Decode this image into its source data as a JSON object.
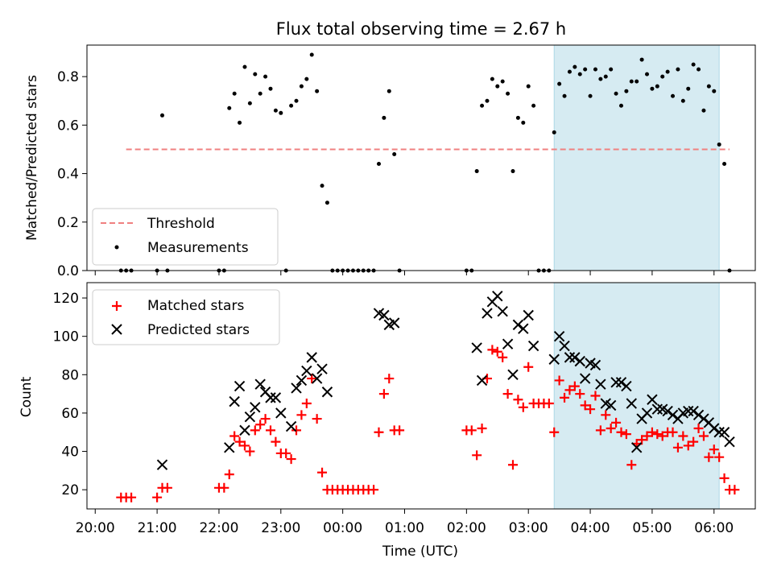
{
  "chart_data": [
    {
      "type": "scatter",
      "title": "Flux total observing time = 2.67 h",
      "ylabel": "Matched/Predicted stars",
      "ylim": [
        0,
        0.93
      ],
      "yticks": [
        0.0,
        0.2,
        0.4,
        0.6,
        0.8
      ],
      "ytick_labels": [
        "0.0",
        "0.2",
        "0.4",
        "0.6",
        "0.8"
      ],
      "legend_position": "lower-left",
      "highlight_span": [
        "03:25",
        "06:05"
      ],
      "highlight_color": "#add8e6",
      "threshold": {
        "name": "Threshold",
        "y": 0.5,
        "x_range": [
          "20:30",
          "06:15"
        ],
        "color": "#f08080"
      },
      "series": [
        {
          "name": "Measurements",
          "color": "#000000",
          "marker": "dot",
          "points": [
            [
              "20:25",
              0
            ],
            [
              "20:30",
              0
            ],
            [
              "20:35",
              0
            ],
            [
              "21:00",
              0
            ],
            [
              "21:05",
              0.64
            ],
            [
              "21:10",
              0
            ],
            [
              "22:00",
              0
            ],
            [
              "22:05",
              0
            ],
            [
              "22:10",
              0.67
            ],
            [
              "22:15",
              0.73
            ],
            [
              "22:20",
              0.61
            ],
            [
              "22:25",
              0.84
            ],
            [
              "22:30",
              0.69
            ],
            [
              "22:35",
              0.81
            ],
            [
              "22:40",
              0.73
            ],
            [
              "22:45",
              0.8
            ],
            [
              "22:50",
              0.75
            ],
            [
              "22:55",
              0.66
            ],
            [
              "23:00",
              0.65
            ],
            [
              "23:05",
              0
            ],
            [
              "23:10",
              0.68
            ],
            [
              "23:15",
              0.7
            ],
            [
              "23:20",
              0.76
            ],
            [
              "23:25",
              0.79
            ],
            [
              "23:30",
              0.89
            ],
            [
              "23:35",
              0.74
            ],
            [
              "23:40",
              0.35
            ],
            [
              "23:45",
              0.28
            ],
            [
              "23:50",
              0
            ],
            [
              "23:55",
              0
            ],
            [
              "00:00",
              0
            ],
            [
              "00:05",
              0
            ],
            [
              "00:10",
              0
            ],
            [
              "00:15",
              0
            ],
            [
              "00:20",
              0
            ],
            [
              "00:25",
              0
            ],
            [
              "00:30",
              0
            ],
            [
              "00:35",
              0.44
            ],
            [
              "00:40",
              0.63
            ],
            [
              "00:45",
              0.74
            ],
            [
              "00:50",
              0.48
            ],
            [
              "00:55",
              0
            ],
            [
              "02:00",
              0
            ],
            [
              "02:05",
              0
            ],
            [
              "02:10",
              0.41
            ],
            [
              "02:15",
              0.68
            ],
            [
              "02:20",
              0.7
            ],
            [
              "02:25",
              0.79
            ],
            [
              "02:30",
              0.76
            ],
            [
              "02:35",
              0.78
            ],
            [
              "02:40",
              0.73
            ],
            [
              "02:45",
              0.41
            ],
            [
              "02:50",
              0.63
            ],
            [
              "02:55",
              0.61
            ],
            [
              "03:00",
              0.76
            ],
            [
              "03:05",
              0.68
            ],
            [
              "03:10",
              0
            ],
            [
              "03:15",
              0
            ],
            [
              "03:20",
              0
            ],
            [
              "03:25",
              0.57
            ],
            [
              "03:30",
              0.77
            ],
            [
              "03:35",
              0.72
            ],
            [
              "03:40",
              0.82
            ],
            [
              "03:45",
              0.84
            ],
            [
              "03:50",
              0.81
            ],
            [
              "03:55",
              0.83
            ],
            [
              "04:00",
              0.72
            ],
            [
              "04:05",
              0.83
            ],
            [
              "04:10",
              0.79
            ],
            [
              "04:15",
              0.8
            ],
            [
              "04:20",
              0.83
            ],
            [
              "04:25",
              0.73
            ],
            [
              "04:30",
              0.68
            ],
            [
              "04:35",
              0.74
            ],
            [
              "04:40",
              0.78
            ],
            [
              "04:45",
              0.78
            ],
            [
              "04:50",
              0.87
            ],
            [
              "04:55",
              0.81
            ],
            [
              "05:00",
              0.75
            ],
            [
              "05:05",
              0.76
            ],
            [
              "05:10",
              0.8
            ],
            [
              "05:15",
              0.82
            ],
            [
              "05:20",
              0.72
            ],
            [
              "05:25",
              0.83
            ],
            [
              "05:30",
              0.7
            ],
            [
              "05:35",
              0.75
            ],
            [
              "05:40",
              0.85
            ],
            [
              "05:45",
              0.83
            ],
            [
              "05:50",
              0.66
            ],
            [
              "05:55",
              0.76
            ],
            [
              "06:00",
              0.74
            ],
            [
              "06:05",
              0.52
            ],
            [
              "06:10",
              0.44
            ],
            [
              "06:15",
              0
            ]
          ]
        }
      ]
    },
    {
      "type": "scatter",
      "xlabel": "Time (UTC)",
      "ylabel": "Count",
      "ylim": [
        10,
        128
      ],
      "yticks": [
        20,
        40,
        60,
        80,
        100,
        120
      ],
      "ytick_labels": [
        "20",
        "40",
        "60",
        "80",
        "100",
        "120"
      ],
      "xticks": [
        "20:00",
        "21:00",
        "22:00",
        "23:00",
        "00:00",
        "01:00",
        "02:00",
        "03:00",
        "04:00",
        "05:00",
        "06:00"
      ],
      "legend_position": "upper-left",
      "highlight_span": [
        "03:25",
        "06:05"
      ],
      "highlight_color": "#add8e6",
      "series": [
        {
          "name": "Matched stars",
          "color": "#ff0000",
          "marker": "plus",
          "points": [
            [
              "20:25",
              16
            ],
            [
              "20:30",
              16
            ],
            [
              "20:35",
              16
            ],
            [
              "21:00",
              16
            ],
            [
              "21:05",
              21
            ],
            [
              "21:10",
              21
            ],
            [
              "22:00",
              21
            ],
            [
              "22:05",
              21
            ],
            [
              "22:10",
              28
            ],
            [
              "22:15",
              48
            ],
            [
              "22:20",
              45
            ],
            [
              "22:25",
              43
            ],
            [
              "22:30",
              40
            ],
            [
              "22:35",
              51
            ],
            [
              "22:40",
              54
            ],
            [
              "22:45",
              57
            ],
            [
              "22:50",
              51
            ],
            [
              "22:55",
              45
            ],
            [
              "23:00",
              39
            ],
            [
              "23:05",
              39
            ],
            [
              "23:10",
              36
            ],
            [
              "23:15",
              51
            ],
            [
              "23:20",
              59
            ],
            [
              "23:25",
              65
            ],
            [
              "23:30",
              78
            ],
            [
              "23:35",
              57
            ],
            [
              "23:40",
              29
            ],
            [
              "23:45",
              20
            ],
            [
              "23:50",
              20
            ],
            [
              "23:55",
              20
            ],
            [
              "00:00",
              20
            ],
            [
              "00:05",
              20
            ],
            [
              "00:10",
              20
            ],
            [
              "00:15",
              20
            ],
            [
              "00:20",
              20
            ],
            [
              "00:25",
              20
            ],
            [
              "00:30",
              20
            ],
            [
              "00:35",
              50
            ],
            [
              "00:40",
              70
            ],
            [
              "00:45",
              78
            ],
            [
              "00:50",
              51
            ],
            [
              "00:55",
              51
            ],
            [
              "02:00",
              51
            ],
            [
              "02:05",
              51
            ],
            [
              "02:10",
              38
            ],
            [
              "02:15",
              52
            ],
            [
              "02:20",
              78
            ],
            [
              "02:25",
              93
            ],
            [
              "02:30",
              92
            ],
            [
              "02:35",
              89
            ],
            [
              "02:40",
              70
            ],
            [
              "02:45",
              33
            ],
            [
              "02:50",
              67
            ],
            [
              "02:55",
              63
            ],
            [
              "03:00",
              84
            ],
            [
              "03:05",
              65
            ],
            [
              "03:10",
              65
            ],
            [
              "03:15",
              65
            ],
            [
              "03:20",
              65
            ],
            [
              "03:25",
              50
            ],
            [
              "03:30",
              77
            ],
            [
              "03:35",
              68
            ],
            [
              "03:40",
              72
            ],
            [
              "03:45",
              74
            ],
            [
              "03:50",
              70
            ],
            [
              "03:55",
              64
            ],
            [
              "04:00",
              62
            ],
            [
              "04:05",
              69
            ],
            [
              "04:10",
              51
            ],
            [
              "04:15",
              59
            ],
            [
              "04:20",
              52
            ],
            [
              "04:25",
              55
            ],
            [
              "04:30",
              50
            ],
            [
              "04:35",
              49
            ],
            [
              "04:40",
              33
            ],
            [
              "04:45",
              44
            ],
            [
              "04:50",
              46
            ],
            [
              "04:55",
              48
            ],
            [
              "05:00",
              50
            ],
            [
              "05:05",
              49
            ],
            [
              "05:10",
              48
            ],
            [
              "05:15",
              50
            ],
            [
              "05:20",
              50
            ],
            [
              "05:25",
              42
            ],
            [
              "05:30",
              48
            ],
            [
              "05:35",
              43
            ],
            [
              "05:40",
              45
            ],
            [
              "05:45",
              52
            ],
            [
              "05:50",
              48
            ],
            [
              "05:55",
              37
            ],
            [
              "06:00",
              41
            ],
            [
              "06:05",
              37
            ],
            [
              "06:10",
              26
            ],
            [
              "06:15",
              20
            ],
            [
              "06:20",
              20
            ]
          ]
        },
        {
          "name": "Predicted stars",
          "color": "#000000",
          "marker": "x",
          "points": [
            [
              "21:05",
              33
            ],
            [
              "22:10",
              42
            ],
            [
              "22:15",
              66
            ],
            [
              "22:20",
              74
            ],
            [
              "22:25",
              51
            ],
            [
              "22:30",
              58
            ],
            [
              "22:35",
              63
            ],
            [
              "22:40",
              75
            ],
            [
              "22:45",
              71
            ],
            [
              "22:50",
              68
            ],
            [
              "22:55",
              68
            ],
            [
              "23:00",
              60
            ],
            [
              "23:10",
              53
            ],
            [
              "23:15",
              73
            ],
            [
              "23:20",
              77
            ],
            [
              "23:25",
              82
            ],
            [
              "23:30",
              89
            ],
            [
              "23:35",
              78
            ],
            [
              "23:40",
              83
            ],
            [
              "23:45",
              71
            ],
            [
              "00:35",
              112
            ],
            [
              "00:40",
              111
            ],
            [
              "00:45",
              106
            ],
            [
              "00:50",
              107
            ],
            [
              "02:10",
              94
            ],
            [
              "02:15",
              77
            ],
            [
              "02:20",
              112
            ],
            [
              "02:25",
              118
            ],
            [
              "02:30",
              121
            ],
            [
              "02:35",
              113
            ],
            [
              "02:40",
              96
            ],
            [
              "02:45",
              80
            ],
            [
              "02:50",
              106
            ],
            [
              "02:55",
              104
            ],
            [
              "03:00",
              111
            ],
            [
              "03:05",
              95
            ],
            [
              "03:25",
              88
            ],
            [
              "03:30",
              100
            ],
            [
              "03:35",
              95
            ],
            [
              "03:40",
              89
            ],
            [
              "03:45",
              89
            ],
            [
              "03:50",
              87
            ],
            [
              "03:55",
              78
            ],
            [
              "04:00",
              86
            ],
            [
              "04:05",
              85
            ],
            [
              "04:10",
              75
            ],
            [
              "04:15",
              65
            ],
            [
              "04:20",
              64
            ],
            [
              "04:25",
              76
            ],
            [
              "04:30",
              76
            ],
            [
              "04:35",
              74
            ],
            [
              "04:40",
              65
            ],
            [
              "04:45",
              42
            ],
            [
              "04:50",
              57
            ],
            [
              "04:55",
              60
            ],
            [
              "05:00",
              67
            ],
            [
              "05:05",
              62
            ],
            [
              "05:10",
              62
            ],
            [
              "05:15",
              61
            ],
            [
              "05:20",
              59
            ],
            [
              "05:25",
              57
            ],
            [
              "05:30",
              60
            ],
            [
              "05:35",
              61
            ],
            [
              "05:40",
              61
            ],
            [
              "05:45",
              59
            ],
            [
              "05:50",
              57
            ],
            [
              "05:55",
              55
            ],
            [
              "06:00",
              52
            ],
            [
              "06:05",
              50
            ],
            [
              "06:10",
              50
            ],
            [
              "06:15",
              45
            ]
          ]
        }
      ]
    }
  ]
}
